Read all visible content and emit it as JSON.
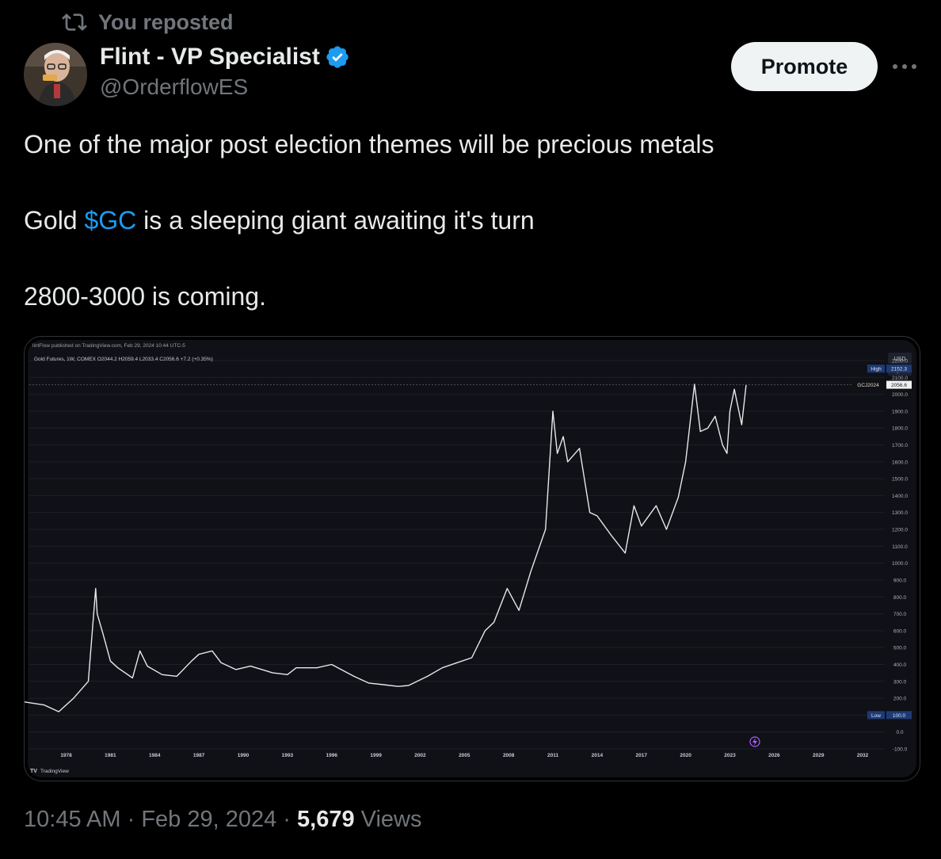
{
  "repost": {
    "label": "You reposted",
    "icon": "repost-icon"
  },
  "author": {
    "name": "Flint - VP Specialist",
    "handle": "@OrderflowES",
    "verified": true
  },
  "actions": {
    "promote_label": "Promote",
    "more_icon": "more-icon"
  },
  "post": {
    "line1": "One of the major post election themes will be precious metals",
    "line2_pre": "Gold ",
    "line2_cashtag": "$GC",
    "line2_post": " is a sleeping giant awaiting it's turn",
    "line3": "2800-3000 is coming."
  },
  "chart": {
    "published": "lintFlow published on TradingView.com, Feb 29, 2024 10:44 UTC-5",
    "legend": "Gold Futures, 1W, COMEX  O2044.2  H2059.4  L2033.4  C2056.6  +7.2 (+0.35%)",
    "currency": "USD",
    "scale_mode": "apoz",
    "high_label": "High",
    "high_value": "2152.3",
    "symbol_label": "GCJ2024",
    "last_value": "2056.6",
    "low_label": "Low",
    "low_value": "100.0",
    "watermark": "TradingView",
    "y_ticks": [
      "2200.0",
      "2100.0",
      "2000.0",
      "1900.0",
      "1800.0",
      "1700.0",
      "1600.0",
      "1500.0",
      "1400.0",
      "1300.0",
      "1200.0",
      "1100.0",
      "1000.0",
      "900.0",
      "800.0",
      "700.0",
      "600.0",
      "500.0",
      "400.0",
      "300.0",
      "200.0",
      "100.0",
      "0.0",
      "-100.0"
    ],
    "x_ticks": [
      "1978",
      "1981",
      "1984",
      "1987",
      "1990",
      "1993",
      "1996",
      "1999",
      "2002",
      "2005",
      "2008",
      "2011",
      "2014",
      "2017",
      "2020",
      "2023",
      "2026",
      "2029",
      "2032"
    ]
  },
  "chart_data": {
    "type": "line",
    "title": "",
    "xlabel": "",
    "ylabel": "",
    "ylim": [
      -100,
      2200
    ],
    "xlim": [
      1975.5,
      2033.5
    ],
    "x": [
      1975.0,
      1976.5,
      1977.5,
      1978.5,
      1979.5,
      1980.0,
      1980.1,
      1980.5,
      1981.0,
      1981.5,
      1982.5,
      1983.0,
      1983.5,
      1984.5,
      1985.5,
      1986.5,
      1987.0,
      1987.9,
      1988.5,
      1989.5,
      1990.5,
      1992.0,
      1993.0,
      1993.6,
      1995.0,
      1996.0,
      1997.5,
      1998.5,
      1999.5,
      2000.5,
      2001.2,
      2002.5,
      2003.5,
      2004.5,
      2005.5,
      2006.4,
      2007.0,
      2007.9,
      2008.7,
      2009.5,
      2010.5,
      2011.0,
      2011.3,
      2011.7,
      2012.0,
      2012.8,
      2013.5,
      2014.0,
      2015.0,
      2015.9,
      2016.5,
      2017.0,
      2018.0,
      2018.7,
      2019.5,
      2020.0,
      2020.6,
      2021.0,
      2021.5,
      2022.0,
      2022.5,
      2022.8,
      2023.0,
      2023.3,
      2023.8,
      2024.1
    ],
    "y": [
      180,
      160,
      120,
      200,
      300,
      850,
      700,
      580,
      420,
      380,
      320,
      480,
      390,
      340,
      330,
      420,
      460,
      480,
      410,
      370,
      390,
      350,
      340,
      380,
      380,
      400,
      330,
      290,
      280,
      270,
      275,
      330,
      380,
      410,
      440,
      600,
      650,
      850,
      720,
      950,
      1200,
      1900,
      1650,
      1750,
      1600,
      1680,
      1300,
      1280,
      1160,
      1060,
      1340,
      1220,
      1340,
      1200,
      1390,
      1600,
      2060,
      1780,
      1800,
      1870,
      1700,
      1650,
      1900,
      2030,
      1820,
      2056.6
    ]
  }
}
